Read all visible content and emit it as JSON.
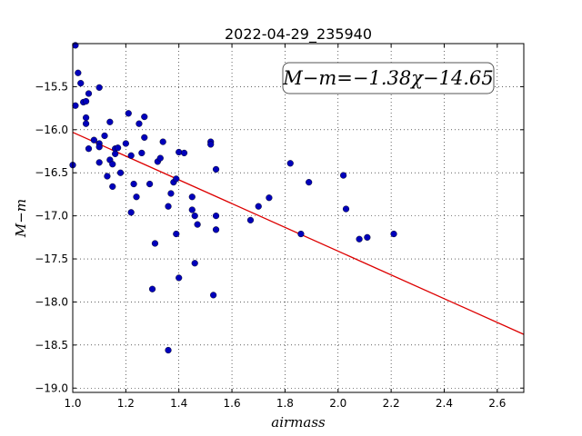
{
  "chart_data": {
    "type": "scatter",
    "title": "2022-04-29_235940",
    "xlabel": "airmass",
    "ylabel": "M−m",
    "xlim": [
      1.0,
      2.7
    ],
    "ylim": [
      -19.05,
      -15.0
    ],
    "x_ticks": [
      1.0,
      1.2,
      1.4,
      1.6,
      1.8,
      2.0,
      2.2,
      2.4,
      2.6
    ],
    "x_tick_labels": [
      "1.0",
      "1.2",
      "1.4",
      "1.6",
      "1.8",
      "2.0",
      "2.2",
      "2.4",
      "2.6"
    ],
    "y_ticks": [
      -15.5,
      -16.0,
      -16.5,
      -17.0,
      -17.5,
      -18.0,
      -18.5,
      -19.0
    ],
    "y_tick_labels": [
      "−15.5",
      "−16.0",
      "−16.5",
      "−17.0",
      "−17.5",
      "−18.0",
      "−18.5",
      "−19.0"
    ],
    "grid": true,
    "annotation": "M−m=−1.38χ−14.65",
    "fit_line": {
      "slope": -1.38,
      "intercept": -14.65,
      "color": "#dd0000"
    },
    "point_color": "#0000bb",
    "points": [
      [
        1.01,
        -15.02
      ],
      [
        1.02,
        -15.34
      ],
      [
        1.03,
        -15.46
      ],
      [
        1.04,
        -15.68
      ],
      [
        1.05,
        -15.67
      ],
      [
        1.06,
        -15.58
      ],
      [
        1.01,
        -15.72
      ],
      [
        1.05,
        -15.86
      ],
      [
        1.05,
        -15.93
      ],
      [
        1.1,
        -15.51
      ],
      [
        1.0,
        -16.41
      ],
      [
        1.06,
        -16.22
      ],
      [
        1.08,
        -16.12
      ],
      [
        1.1,
        -16.16
      ],
      [
        1.1,
        -16.2
      ],
      [
        1.1,
        -16.38
      ],
      [
        1.12,
        -16.07
      ],
      [
        1.13,
        -16.54
      ],
      [
        1.14,
        -16.35
      ],
      [
        1.14,
        -15.91
      ],
      [
        1.15,
        -16.4
      ],
      [
        1.15,
        -16.66
      ],
      [
        1.16,
        -16.22
      ],
      [
        1.16,
        -16.28
      ],
      [
        1.17,
        -16.21
      ],
      [
        1.18,
        -16.5
      ],
      [
        1.2,
        -16.16
      ],
      [
        1.21,
        -15.81
      ],
      [
        1.22,
        -16.3
      ],
      [
        1.22,
        -16.96
      ],
      [
        1.23,
        -16.63
      ],
      [
        1.24,
        -16.78
      ],
      [
        1.25,
        -15.93
      ],
      [
        1.26,
        -16.27
      ],
      [
        1.27,
        -15.85
      ],
      [
        1.27,
        -16.09
      ],
      [
        1.29,
        -16.63
      ],
      [
        1.3,
        -17.85
      ],
      [
        1.31,
        -17.32
      ],
      [
        1.32,
        -16.37
      ],
      [
        1.33,
        -16.33
      ],
      [
        1.34,
        -16.14
      ],
      [
        1.36,
        -18.56
      ],
      [
        1.36,
        -16.89
      ],
      [
        1.37,
        -16.74
      ],
      [
        1.38,
        -16.61
      ],
      [
        1.39,
        -16.57
      ],
      [
        1.39,
        -17.21
      ],
      [
        1.4,
        -17.72
      ],
      [
        1.4,
        -16.26
      ],
      [
        1.42,
        -16.27
      ],
      [
        1.45,
        -16.78
      ],
      [
        1.45,
        -16.93
      ],
      [
        1.46,
        -17.0
      ],
      [
        1.46,
        -17.55
      ],
      [
        1.47,
        -17.1
      ],
      [
        1.52,
        -16.14
      ],
      [
        1.52,
        -16.17
      ],
      [
        1.53,
        -17.92
      ],
      [
        1.54,
        -16.46
      ],
      [
        1.54,
        -17.0
      ],
      [
        1.54,
        -17.16
      ],
      [
        1.67,
        -17.05
      ],
      [
        1.7,
        -16.89
      ],
      [
        1.74,
        -16.79
      ],
      [
        1.82,
        -16.39
      ],
      [
        1.86,
        -17.21
      ],
      [
        1.89,
        -16.61
      ],
      [
        2.02,
        -16.53
      ],
      [
        2.03,
        -16.92
      ],
      [
        2.08,
        -17.27
      ],
      [
        2.11,
        -17.25
      ],
      [
        2.21,
        -17.21
      ]
    ]
  }
}
